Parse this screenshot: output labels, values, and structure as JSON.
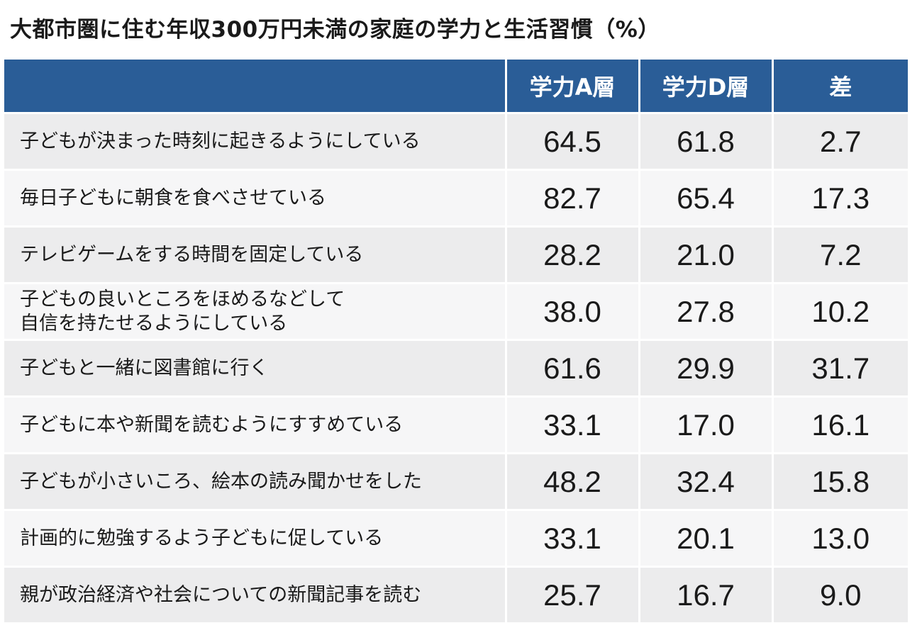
{
  "title": "大都市圏に住む年収300万円未満の家庭の学力と生活習慣（%）",
  "table": {
    "headers": [
      "",
      "学力A層",
      "学力D層",
      "差"
    ],
    "rows": [
      {
        "label": "子どもが決まった時刻に起きるようにしている",
        "a": "64.5",
        "d": "61.8",
        "diff": "2.7"
      },
      {
        "label": "毎日子どもに朝食を食べさせている",
        "a": "82.7",
        "d": "65.4",
        "diff": "17.3"
      },
      {
        "label": "テレビゲームをする時間を固定している",
        "a": "28.2",
        "d": "21.0",
        "diff": "7.2"
      },
      {
        "label": "子どもの良いところをほめるなどして\n自信を持たせるようにしている",
        "a": "38.0",
        "d": "27.8",
        "diff": "10.2"
      },
      {
        "label": "子どもと一緒に図書館に行く",
        "a": "61.6",
        "d": "29.9",
        "diff": "31.7"
      },
      {
        "label": "子どもに本や新聞を読むようにすすめている",
        "a": "33.1",
        "d": "17.0",
        "diff": "16.1"
      },
      {
        "label": "子どもが小さいころ、絵本の読み聞かせをした",
        "a": "48.2",
        "d": "32.4",
        "diff": "15.8"
      },
      {
        "label": "計画的に勉強するよう子どもに促している",
        "a": "33.1",
        "d": "20.1",
        "diff": "13.0"
      },
      {
        "label": "親が政治経済や社会についての新聞記事を読む",
        "a": "25.7",
        "d": "16.7",
        "diff": "9.0"
      }
    ]
  },
  "colors": {
    "header_bg": "#2a5d97",
    "header_text": "#ffffff",
    "row_odd_bg": "#ececed",
    "row_even_bg": "#f6f6f7"
  }
}
